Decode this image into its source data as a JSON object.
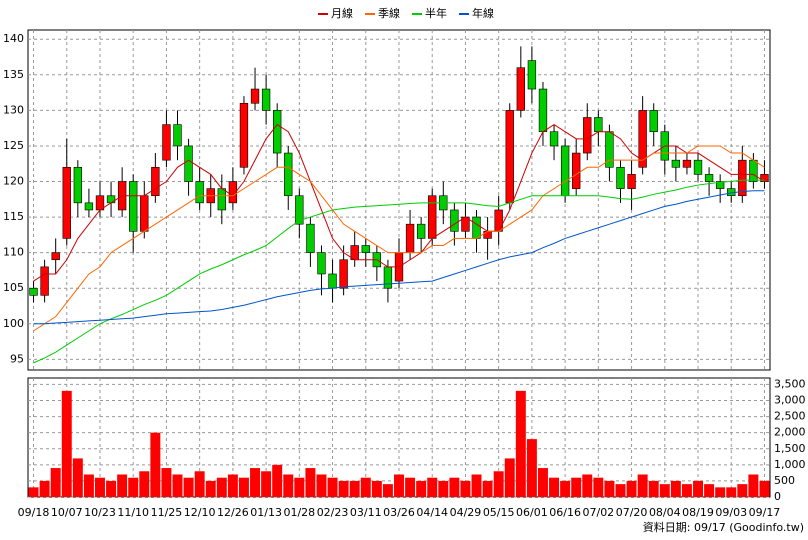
{
  "chart_data": {
    "type": "candlestick",
    "categories": [
      "09/18",
      null,
      null,
      "10/07",
      null,
      null,
      "10/23",
      null,
      null,
      "11/10",
      null,
      null,
      "11/25",
      null,
      null,
      "12/10",
      null,
      null,
      "12/26",
      null,
      null,
      "01/13",
      null,
      null,
      "01/28",
      null,
      null,
      "02/23",
      null,
      null,
      "03/11",
      null,
      null,
      "03/26",
      null,
      null,
      "04/14",
      null,
      null,
      "04/29",
      null,
      null,
      "05/15",
      null,
      null,
      "06/01",
      null,
      null,
      "06/16",
      null,
      null,
      "07/02",
      null,
      null,
      "07/20",
      null,
      null,
      "08/04",
      null,
      null,
      "08/19",
      null,
      null,
      "09/03",
      null,
      null,
      "09/17"
    ],
    "open": [
      105,
      104,
      109,
      112,
      122,
      117,
      116,
      118,
      116,
      120,
      113,
      118,
      123,
      128,
      125,
      120,
      117,
      119,
      117,
      122,
      131,
      133,
      130,
      124,
      118,
      114,
      110,
      107,
      105,
      109,
      111,
      110,
      108,
      106,
      110,
      114,
      112,
      118,
      116,
      113,
      115,
      112,
      113,
      117,
      130,
      137,
      133,
      127,
      125,
      119,
      124,
      129,
      127,
      122,
      119,
      122,
      130,
      127,
      123,
      122,
      123,
      121,
      120,
      119,
      118,
      123,
      120
    ],
    "high": [
      106,
      109,
      112,
      126,
      123,
      119,
      120,
      120,
      122,
      121,
      120,
      124,
      130,
      130,
      126,
      122,
      121,
      121,
      122,
      132,
      136,
      135,
      131,
      125,
      119,
      115,
      111,
      109,
      111,
      113,
      112,
      111,
      109,
      112,
      116,
      115,
      119,
      120,
      117,
      117,
      116,
      115,
      118,
      131,
      139,
      139,
      134,
      128,
      126,
      126,
      131,
      130,
      128,
      123,
      123,
      132,
      131,
      128,
      125,
      124,
      124,
      122,
      121,
      120,
      125,
      124,
      123
    ],
    "low": [
      103,
      103,
      107,
      111,
      115,
      115,
      115,
      115,
      115,
      110,
      112,
      117,
      122,
      123,
      118,
      116,
      115,
      114,
      116,
      121,
      130,
      128,
      122,
      116,
      112,
      108,
      104,
      103,
      104,
      108,
      108,
      106,
      103,
      105,
      109,
      110,
      111,
      114,
      111,
      112,
      110,
      109,
      111,
      116,
      129,
      131,
      125,
      123,
      117,
      118,
      123,
      125,
      120,
      117,
      116,
      121,
      125,
      121,
      120,
      121,
      120,
      118,
      117,
      117,
      117,
      119,
      119
    ],
    "close": [
      104,
      108,
      110,
      122,
      117,
      116,
      118,
      117,
      120,
      113,
      118,
      122,
      128,
      125,
      120,
      117,
      119,
      116,
      120,
      131,
      133,
      130,
      124,
      118,
      114,
      110,
      107,
      105,
      109,
      111,
      110,
      108,
      105,
      110,
      114,
      112,
      118,
      116,
      113,
      115,
      112,
      113,
      116,
      130,
      136,
      133,
      127,
      125,
      118,
      124,
      129,
      127,
      122,
      119,
      121,
      130,
      127,
      123,
      122,
      123,
      121,
      120,
      119,
      118,
      123,
      120,
      121
    ],
    "up_color": "#ff0000",
    "down_color": "#00cc00",
    "series": [
      {
        "name": "月線",
        "color": "#cc0000",
        "values": [
          106,
          107,
          107,
          109,
          112,
          114,
          116,
          117,
          118,
          118,
          118,
          119,
          120,
          122,
          123,
          122,
          121,
          119,
          118,
          120,
          123,
          126,
          128,
          127,
          124,
          120,
          116,
          112,
          110,
          109,
          109,
          109,
          108,
          108,
          109,
          110,
          112,
          113,
          114,
          115,
          114,
          113,
          113,
          116,
          120,
          124,
          127,
          128,
          127,
          126,
          126,
          127,
          127,
          126,
          124,
          123,
          124,
          125,
          125,
          124,
          124,
          123,
          122,
          121,
          121,
          121,
          120
        ]
      },
      {
        "name": "季線",
        "color": "#ff6600",
        "values": [
          99,
          100,
          101,
          103,
          105,
          107,
          108,
          110,
          111,
          112,
          113,
          114,
          115,
          116,
          117,
          118,
          118,
          118,
          118,
          119,
          120,
          121,
          122,
          122,
          121,
          120,
          118,
          116,
          114,
          113,
          112,
          111,
          110,
          110,
          110,
          110,
          111,
          111,
          112,
          112,
          112,
          113,
          113,
          114,
          115,
          116,
          118,
          119,
          120,
          121,
          122,
          122,
          123,
          123,
          123,
          123,
          124,
          124,
          124,
          124,
          125,
          125,
          125,
          124,
          124,
          123,
          122
        ]
      },
      {
        "name": "半年",
        "color": "#00cc00",
        "values": [
          94.5,
          95.2,
          96,
          97,
          98,
          99,
          100,
          100.7,
          101.3,
          102,
          102.7,
          103.3,
          104,
          105,
          106,
          107,
          107.7,
          108.3,
          109,
          109.7,
          110.3,
          111,
          112.2,
          113.4,
          114.5,
          115,
          115.5,
          116,
          116.2,
          116.4,
          116.5,
          116.6,
          116.7,
          116.8,
          116.9,
          117,
          117,
          117,
          117,
          117,
          116.8,
          116.6,
          116.5,
          117,
          117.5,
          118,
          118,
          118,
          118,
          118,
          118,
          118,
          117.8,
          117.6,
          117.5,
          117.8,
          118.2,
          118.5,
          118.8,
          119.2,
          119.5,
          119.7,
          119.9,
          120,
          120.2,
          120.2,
          120.2
        ]
      },
      {
        "name": "年線",
        "color": "#0055cc",
        "values": [
          100,
          100,
          100.1,
          100.2,
          100.3,
          100.4,
          100.5,
          100.6,
          100.7,
          100.8,
          101,
          101.2,
          101.4,
          101.5,
          101.6,
          101.7,
          101.8,
          102,
          102.3,
          102.6,
          103,
          103.4,
          103.8,
          104.1,
          104.4,
          104.7,
          104.9,
          105,
          105.2,
          105.3,
          105.4,
          105.5,
          105.6,
          105.7,
          105.8,
          105.9,
          106,
          106.5,
          107,
          107.5,
          108,
          108.5,
          109,
          109.4,
          109.7,
          110,
          110.7,
          111.3,
          112,
          112.5,
          113,
          113.5,
          114,
          114.5,
          115,
          115.5,
          116,
          116.5,
          116.8,
          117.2,
          117.5,
          117.8,
          118.1,
          118.4,
          118.6,
          118.7,
          118.7
        ]
      }
    ],
    "ylim": [
      93.5,
      141.3
    ],
    "yticks": [
      95,
      100,
      105,
      110,
      115,
      120,
      125,
      130,
      135,
      140
    ],
    "volume": {
      "color": "#ff0000",
      "values": [
        300,
        500,
        900,
        3300,
        1200,
        700,
        600,
        500,
        700,
        600,
        800,
        2000,
        900,
        700,
        600,
        800,
        500,
        600,
        700,
        600,
        900,
        800,
        1000,
        700,
        600,
        900,
        700,
        600,
        500,
        500,
        600,
        500,
        400,
        700,
        600,
        500,
        600,
        500,
        600,
        500,
        700,
        500,
        800,
        1200,
        3300,
        1800,
        900,
        600,
        500,
        600,
        700,
        600,
        500,
        400,
        500,
        700,
        500,
        400,
        500,
        400,
        500,
        400,
        300,
        300,
        400,
        700,
        500
      ]
    },
    "y2lim": [
      0,
      3700
    ],
    "y2ticks": [
      0,
      500,
      {
        "value": 1000,
        "label": "1,000"
      },
      {
        "value": 1500,
        "label": "1,500"
      },
      {
        "value": 2000,
        "label": "2,000"
      },
      {
        "value": 2500,
        "label": "2,500"
      },
      {
        "value": 3000,
        "label": "3,000"
      },
      {
        "value": 3500,
        "label": "3,500"
      }
    ],
    "grid": true,
    "note": "資料日期: 09/17 (Goodinfo.tw)"
  }
}
